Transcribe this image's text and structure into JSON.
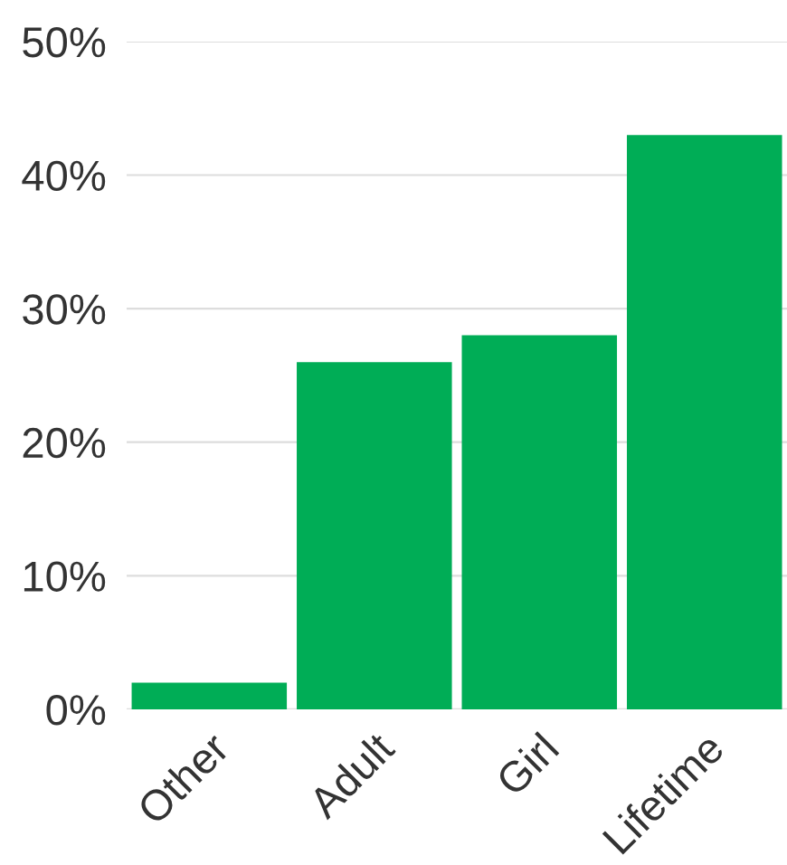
{
  "chart_data": {
    "type": "bar",
    "categories": [
      "Other",
      "Adult",
      "Girl",
      "Lifetime"
    ],
    "values": [
      2,
      26,
      28,
      43
    ],
    "color": "#00ad56",
    "ylim": [
      0,
      50
    ],
    "yticks": [
      {
        "value": 0,
        "label": "0%"
      },
      {
        "value": 10,
        "label": "10%"
      },
      {
        "value": 20,
        "label": "20%"
      },
      {
        "value": 30,
        "label": "30%"
      },
      {
        "value": 40,
        "label": "40%"
      },
      {
        "value": 50,
        "label": "50%"
      }
    ],
    "grid": "y",
    "legend": false
  }
}
